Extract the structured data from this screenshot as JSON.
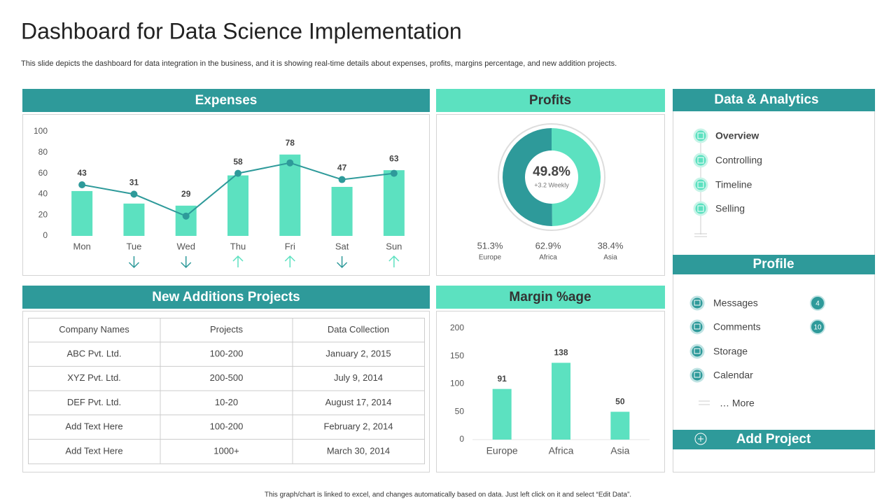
{
  "header": {
    "title": "Dashboard for Data Science Implementation",
    "subtitle": "This slide depicts the dashboard for data integration in the business, and it is showing real-time details about expenses, profits, margins percentage, and new addition projects."
  },
  "chart_data": [
    {
      "type": "combo",
      "title": "Expenses",
      "categories": [
        "Mon",
        "Tue",
        "Wed",
        "Thu",
        "Fri",
        "Sat",
        "Sun"
      ],
      "series": [
        {
          "type": "bar",
          "color": "#5ce1c0",
          "values": [
            43,
            31,
            29,
            58,
            78,
            47,
            63
          ]
        },
        {
          "type": "line",
          "color": "#2e9a9a",
          "values": [
            49,
            40,
            19,
            60,
            70,
            54,
            60
          ]
        }
      ],
      "trend": [
        null,
        "down",
        "down",
        "up",
        "up",
        "down",
        "up"
      ],
      "ylim": [
        0,
        100
      ],
      "yticks": [
        0,
        20,
        40,
        60,
        80,
        100
      ]
    },
    {
      "type": "donut",
      "title": "Profits",
      "value": 49.8,
      "value_label": "49.8%",
      "note": "+3.2 Weekly",
      "colors": [
        "#5ce1c0",
        "#2e9a9a"
      ],
      "stats": [
        {
          "value": "51.3%",
          "label": "Europe"
        },
        {
          "value": "62.9%",
          "label": "Africa"
        },
        {
          "value": "38.4%",
          "label": "Asia"
        }
      ]
    },
    {
      "type": "bar",
      "title": "Margin %age",
      "categories": [
        "Europe",
        "Africa",
        "Asia"
      ],
      "values": [
        91,
        138,
        50
      ],
      "color": "#5ce1c0",
      "ylim": [
        0,
        200
      ],
      "yticks": [
        0,
        50,
        100,
        150,
        200
      ]
    }
  ],
  "table": {
    "title": "New Additions Projects",
    "columns": [
      "Company Names",
      "Projects",
      "Data Collection"
    ],
    "rows": [
      [
        "ABC Pvt. Ltd.",
        "100-200",
        "January 2, 2015"
      ],
      [
        "XYZ Pvt. Ltd.",
        "200-500",
        "July 9, 2014"
      ],
      [
        "DEF Pvt. Ltd.",
        "10-20",
        "August 17, 2014"
      ],
      [
        "Add Text Here",
        "100-200",
        "February 2, 2014"
      ],
      [
        "Add Text Here",
        "1000+",
        "March 30, 2014"
      ]
    ]
  },
  "sidebar": {
    "analytics": {
      "title": "Data & Analytics",
      "items": [
        "Overview",
        "Controlling",
        "Timeline",
        "Selling"
      ]
    },
    "profile": {
      "title": "Profile",
      "items": [
        {
          "label": "Messages",
          "badge": "4"
        },
        {
          "label": "Comments",
          "badge": "10"
        },
        {
          "label": "Storage"
        },
        {
          "label": "Calendar"
        }
      ],
      "more": "… More"
    },
    "add_project": "Add Project"
  },
  "footer": "This graph/chart is linked to excel, and changes automatically based on data. Just left click on it and select “Edit Data”."
}
